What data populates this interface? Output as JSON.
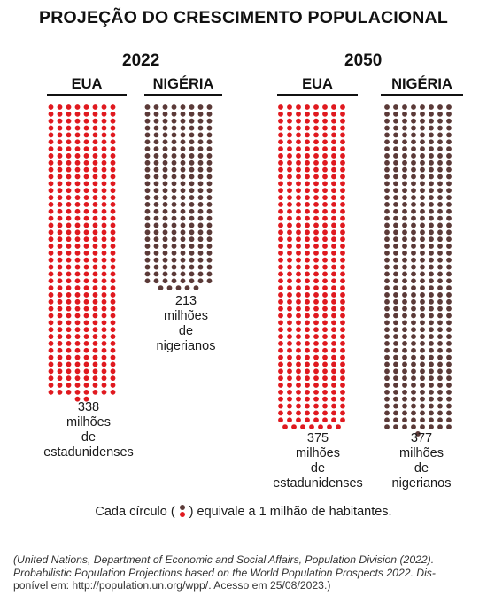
{
  "title": "PROJEÇÃO DO CRESCIMENTO POPULACIONAL",
  "colors": {
    "eua": "#e0191f",
    "nigeria": "#5b3a38"
  },
  "chart_data": {
    "type": "pictogram",
    "unit": "1 milhão de habitantes",
    "groups": [
      {
        "year": "2022",
        "countries": [
          {
            "name": "EUA",
            "value": 338,
            "color": "#e0191f",
            "label_lines": [
              "338",
              "milhões",
              "de",
              "estadunidenses"
            ]
          },
          {
            "name": "NIGÉRIA",
            "value": 213,
            "color": "#5b3a38",
            "label_lines": [
              "213",
              "milhões",
              "de",
              "nigerianos"
            ]
          }
        ]
      },
      {
        "year": "2050",
        "countries": [
          {
            "name": "EUA",
            "value": 375,
            "color": "#e0191f",
            "label_lines": [
              "375",
              "milhões",
              "de",
              "estadunidenses"
            ]
          },
          {
            "name": "NIGÉRIA",
            "value": 377,
            "color": "#5b3a38",
            "label_lines": [
              "377",
              "milhões",
              "de",
              "nigerianos"
            ]
          }
        ]
      }
    ]
  },
  "legend": {
    "prefix": "Cada círculo (",
    "suffix": ")  equivale a 1 milhão de habitantes."
  },
  "source": {
    "line1": "(United Nations, Department of Economic and Social Affairs, Population Division (2022).",
    "line2": "Probabilistic Population Projections based on the World Population Prospects 2022. Dis-",
    "line3": "ponível em: http://population.un.org/wpp/. Acesso em 25/08/2023.)"
  }
}
